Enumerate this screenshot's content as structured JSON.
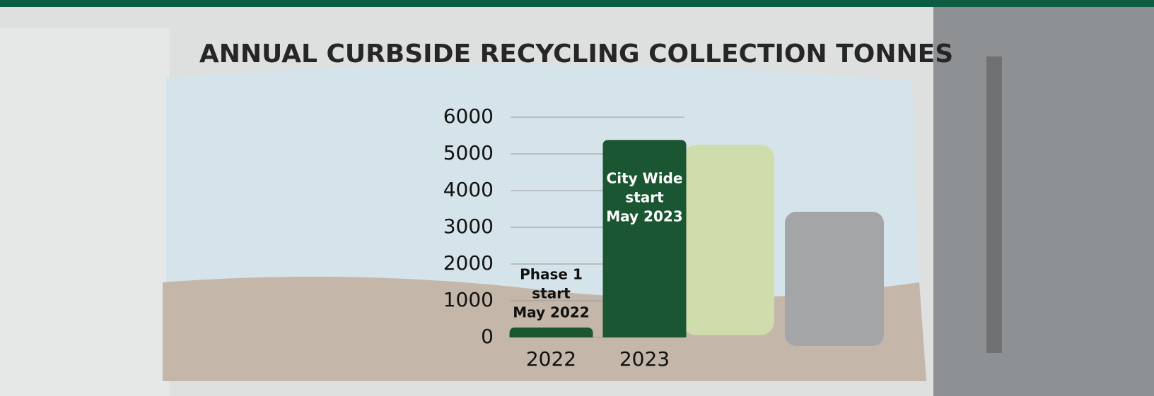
{
  "chart_data": {
    "type": "bar",
    "title": "ANNUAL CURBSIDE RECYCLING COLLECTION TONNES",
    "categories": [
      "2022",
      "2023"
    ],
    "values": [
      270,
      5380
    ],
    "color": "#1b5632",
    "annotations": [
      [
        "Phase 1",
        "start",
        "May 2022"
      ],
      [
        "City Wide",
        "start",
        "May 2023"
      ]
    ],
    "ylim": [
      0,
      6000
    ],
    "yticks": [
      0,
      1000,
      2000,
      3000,
      4000,
      5000,
      6000
    ],
    "grid": true
  }
}
